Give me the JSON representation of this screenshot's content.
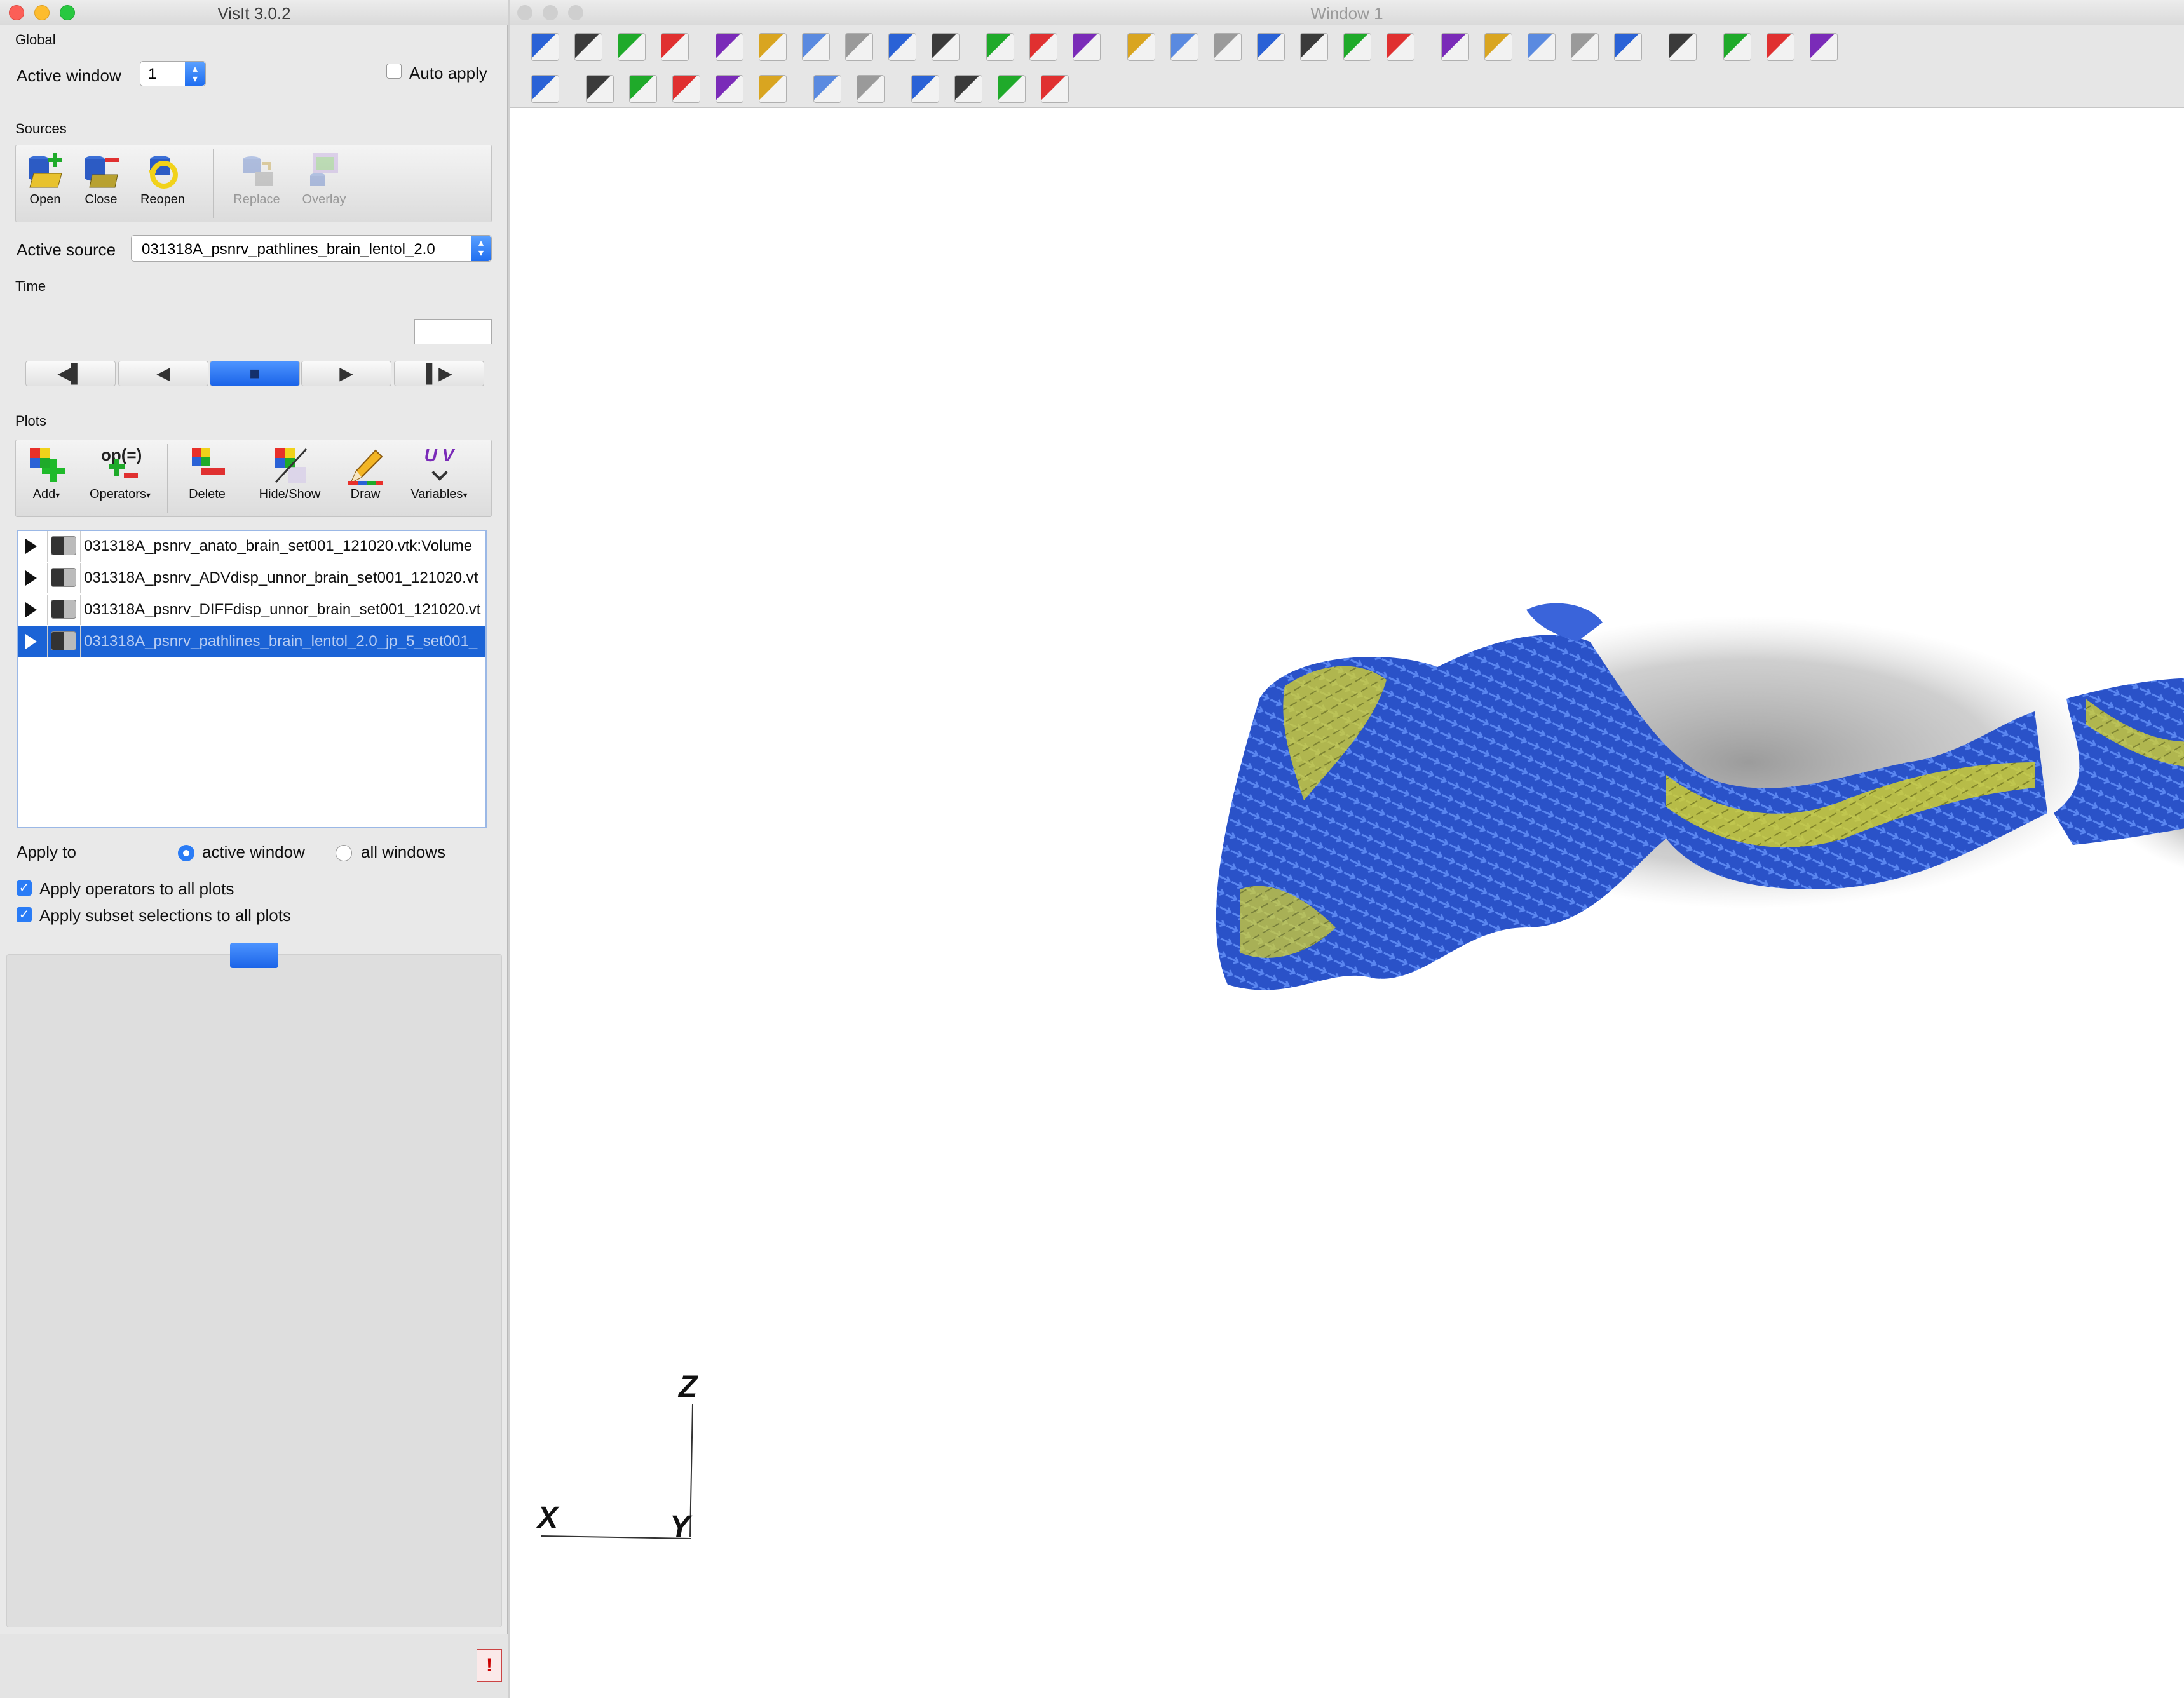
{
  "left_window": {
    "title": "VisIt 3.0.2",
    "global_label": "Global",
    "active_window_label": "Active window",
    "active_window_value": "1",
    "auto_apply_label": "Auto apply",
    "auto_apply_checked": false,
    "sources_label": "Sources",
    "sources_buttons": [
      {
        "label": "Open",
        "icon": "open-db-icon",
        "enabled": true
      },
      {
        "label": "Close",
        "icon": "close-db-icon",
        "enabled": true
      },
      {
        "label": "Reopen",
        "icon": "reopen-icon",
        "enabled": true
      },
      {
        "label": "Replace",
        "icon": "replace-icon",
        "enabled": false
      },
      {
        "label": "Overlay",
        "icon": "overlay-icon",
        "enabled": false
      }
    ],
    "active_source_label": "Active source",
    "active_source_value": "031318A_psnrv_pathlines_brain_lentol_2.0",
    "time_label": "Time",
    "time_value": "",
    "playback_buttons": [
      "◀▌",
      "◀",
      "■",
      "▶",
      "▌▶"
    ],
    "plots_label": "Plots",
    "plots_buttons": [
      {
        "label": "Add",
        "icon": "add-plot-icon",
        "dropdown": true
      },
      {
        "label": "Operators",
        "icon": "operators-icon",
        "dropdown": true
      },
      {
        "label": "Delete",
        "icon": "delete-plot-icon",
        "dropdown": false
      },
      {
        "label": "Hide/Show",
        "icon": "hide-show-icon",
        "dropdown": false
      },
      {
        "label": "Draw",
        "icon": "draw-icon",
        "dropdown": false
      },
      {
        "label": "Variables",
        "icon": "variables-icon",
        "dropdown": true
      }
    ],
    "operators_icon_text": "op(=)",
    "variables_icon_text": "U V",
    "plot_list": [
      {
        "text": "031318A_psnrv_anato_brain_set001_121020.vtk:Volume",
        "selected": false
      },
      {
        "text": "031318A_psnrv_ADVdisp_unnor_brain_set001_121020.vt",
        "selected": false
      },
      {
        "text": "031318A_psnrv_DIFFdisp_unnor_brain_set001_121020.vt",
        "selected": false
      },
      {
        "text": "031318A_psnrv_pathlines_brain_lentol_2.0_jp_5_set001_",
        "selected": true
      }
    ],
    "apply_to_label": "Apply to",
    "apply_to_options": [
      "active window",
      "all windows"
    ],
    "apply_to_selected": "active window",
    "apply_operators_label": "Apply operators to all plots",
    "apply_operators_checked": true,
    "apply_subset_label": "Apply subset selections to all plots",
    "apply_subset_checked": true,
    "warning_icon": "!"
  },
  "right_window": {
    "title": "Window 1",
    "axes": {
      "z": "Z",
      "x": "X",
      "y": "Y"
    },
    "toolbar_row1_icons": [
      "active-window-icon",
      "new-window-icon",
      "clone-window-icon",
      "delete-window-icon",
      "layout-1x1-icon",
      "layout-1x2-icon",
      "layout-2x2-icon",
      "layout-2x3-icon",
      "layout-2x4-icon",
      "layout-3x3-icon",
      "spin-icon",
      "lock-icon",
      "perspective-icon",
      "save-image-icon",
      "camera-icon",
      "camera2-icon",
      "camera3-icon",
      "camera4-icon",
      "camera5-icon",
      "globe-icon",
      "first-frame-icon",
      "prev-frame-icon",
      "stop-icon",
      "play-icon",
      "last-frame-icon",
      "color-table-icon",
      "person-icon",
      "person2-icon",
      "person3-icon"
    ],
    "toolbar_row2_icons": [
      "navigate-icon",
      "zoom-icon",
      "pick-zone-icon",
      "pick-node-icon",
      "pick-spreadsheet-icon",
      "curve-pick-icon",
      "lineout-icon",
      "line-icon",
      "plane-tool-icon",
      "box-tool-icon",
      "sphere-tool-icon",
      "slider-tool-icon"
    ]
  }
}
